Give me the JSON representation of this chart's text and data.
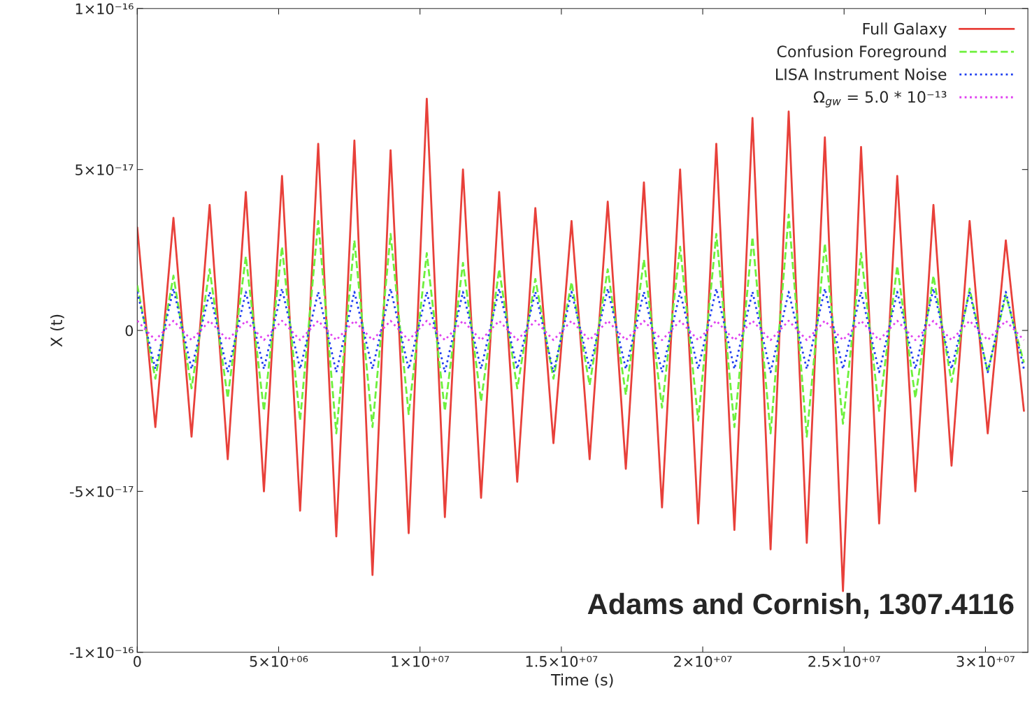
{
  "chart_data": {
    "type": "line",
    "xlabel": "Time (s)",
    "ylabel": "X (t)",
    "x": [
      0,
      640000,
      1280000,
      1920000,
      2560000,
      3200000,
      3840000,
      4480000,
      5120000,
      5760000,
      6400000,
      7040000,
      7680000,
      8320000,
      8960000,
      9600000,
      10240000,
      10880000,
      11520000,
      12160000,
      12800000,
      13440000,
      14080000,
      14720000,
      15360000,
      16000000,
      16640000,
      17280000,
      17920000,
      18560000,
      19200000,
      19840000,
      20480000,
      21120000,
      21760000,
      22400000,
      23040000,
      23680000,
      24320000,
      24960000,
      25600000,
      26240000,
      26880000,
      27520000,
      28160000,
      28800000,
      29440000,
      30080000,
      30720000,
      31360000
    ],
    "series": [
      {
        "name": "Full Galaxy",
        "color": "#e8403a",
        "line_style": "solid",
        "values": [
          3.2e-17,
          -3e-17,
          3.5e-17,
          -3.3e-17,
          3.9e-17,
          -4e-17,
          4.3e-17,
          -5e-17,
          4.8e-17,
          -5.6e-17,
          5.8e-17,
          -6.4e-17,
          5.9e-17,
          -7.6e-17,
          5.6e-17,
          -6.3e-17,
          7.2e-17,
          -5.8e-17,
          5e-17,
          -5.2e-17,
          4.3e-17,
          -4.7e-17,
          3.8e-17,
          -3.5e-17,
          3.4e-17,
          -4e-17,
          4e-17,
          -4.3e-17,
          4.6e-17,
          -5.5e-17,
          5e-17,
          -6e-17,
          5.8e-17,
          -6.2e-17,
          6.6e-17,
          -6.8e-17,
          6.8e-17,
          -6.6e-17,
          6e-17,
          -8.1e-17,
          5.7e-17,
          -6e-17,
          4.8e-17,
          -5e-17,
          3.9e-17,
          -4.2e-17,
          3.4e-17,
          -3.2e-17,
          2.8e-17,
          -2.5e-17
        ]
      },
      {
        "name": "Confusion Foreground",
        "color": "#6ef03c",
        "line_style": "dashed",
        "values": [
          1.4e-17,
          -1.5e-17,
          1.7e-17,
          -1.8e-17,
          1.9e-17,
          -2.1e-17,
          2.3e-17,
          -2.5e-17,
          2.6e-17,
          -2.8e-17,
          3.4e-17,
          -3.2e-17,
          2.8e-17,
          -3e-17,
          3e-17,
          -2.6e-17,
          2.4e-17,
          -2.5e-17,
          2.1e-17,
          -2.2e-17,
          1.9e-17,
          -1.8e-17,
          1.6e-17,
          -1.5e-17,
          1.5e-17,
          -1.7e-17,
          1.9e-17,
          -2e-17,
          2.2e-17,
          -2.4e-17,
          2.6e-17,
          -2.8e-17,
          3e-17,
          -3e-17,
          2.9e-17,
          -3.2e-17,
          3.6e-17,
          -3.3e-17,
          2.7e-17,
          -2.9e-17,
          2.4e-17,
          -2.5e-17,
          2e-17,
          -2.1e-17,
          1.7e-17,
          -1.6e-17,
          1.3e-17,
          -1.3e-17,
          1.1e-17,
          -1e-17
        ]
      },
      {
        "name": "LISA Instrument Noise",
        "color": "#2040f0",
        "line_style": "dotted",
        "values": [
          1.2e-17,
          -1.2e-17,
          1.3e-17,
          -1.2e-17,
          1.2e-17,
          -1.3e-17,
          1.2e-17,
          -1.2e-17,
          1.3e-17,
          -1.2e-17,
          1.2e-17,
          -1.3e-17,
          1.2e-17,
          -1.2e-17,
          1.3e-17,
          -1.2e-17,
          1.2e-17,
          -1.3e-17,
          1.2e-17,
          -1.2e-17,
          1.3e-17,
          -1.2e-17,
          1.2e-17,
          -1.3e-17,
          1.2e-17,
          -1.2e-17,
          1.3e-17,
          -1.2e-17,
          1.2e-17,
          -1.3e-17,
          1.2e-17,
          -1.2e-17,
          1.3e-17,
          -1.2e-17,
          1.2e-17,
          -1.3e-17,
          1.2e-17,
          -1.2e-17,
          1.3e-17,
          -1.2e-17,
          1.2e-17,
          -1.3e-17,
          1.2e-17,
          -1.2e-17,
          1.3e-17,
          -1.2e-17,
          1.2e-17,
          -1.3e-17,
          1.2e-17,
          -1.2e-17
        ]
      },
      {
        "name": "Ω$_{gw}$ = 5.0 * 10⁻¹³",
        "color": "#e040f0",
        "line_style": "dotted",
        "values": [
          3e-18,
          -3e-18,
          3e-18,
          -3e-18,
          3e-18,
          -3e-18,
          3e-18,
          -3e-18,
          3e-18,
          -3e-18,
          3e-18,
          -3e-18,
          3e-18,
          -3e-18,
          3e-18,
          -3e-18,
          3e-18,
          -3e-18,
          3e-18,
          -3e-18,
          3e-18,
          -3e-18,
          3e-18,
          -3e-18,
          3e-18,
          -3e-18,
          3e-18,
          -3e-18,
          3e-18,
          -3e-18,
          3e-18,
          -3e-18,
          3e-18,
          -3e-18,
          3e-18,
          -3e-18,
          3e-18,
          -3e-18,
          3e-18,
          -3e-18,
          3e-18,
          -3e-18,
          3e-18,
          -3e-18,
          3e-18,
          -3e-18,
          3e-18,
          -3e-18,
          3e-18,
          -3e-18
        ]
      }
    ],
    "xlim": [
      0,
      31500000
    ],
    "xticks": [
      0,
      {
        "value": 5000000,
        "label": "5×10⁺⁰⁶"
      },
      {
        "value": 10000000,
        "label": "1×10⁺⁰⁷"
      },
      {
        "value": 15000000,
        "label": "1.5×10⁺⁰⁷"
      },
      {
        "value": 20000000,
        "label": "2×10⁺⁰⁷"
      },
      {
        "value": 25000000,
        "label": "2.5×10⁺⁰⁷"
      },
      {
        "value": 30000000,
        "label": "3×10⁺⁰⁷"
      }
    ],
    "ylim": [
      -1e-16,
      1e-16
    ],
    "yticks": [
      {
        "value": -1e-16,
        "label": "-1×10⁻¹⁶"
      },
      {
        "value": -5e-17,
        "label": "-5×10⁻¹⁷"
      },
      0,
      {
        "value": 5e-17,
        "label": "5×10⁻¹⁷"
      },
      {
        "value": 1e-16,
        "label": "1×10⁻¹⁶"
      }
    ],
    "grid": false,
    "legend": "top right",
    "marker": "none",
    "annotations": [
      "Adams and Cornish, 1307.4116"
    ]
  }
}
